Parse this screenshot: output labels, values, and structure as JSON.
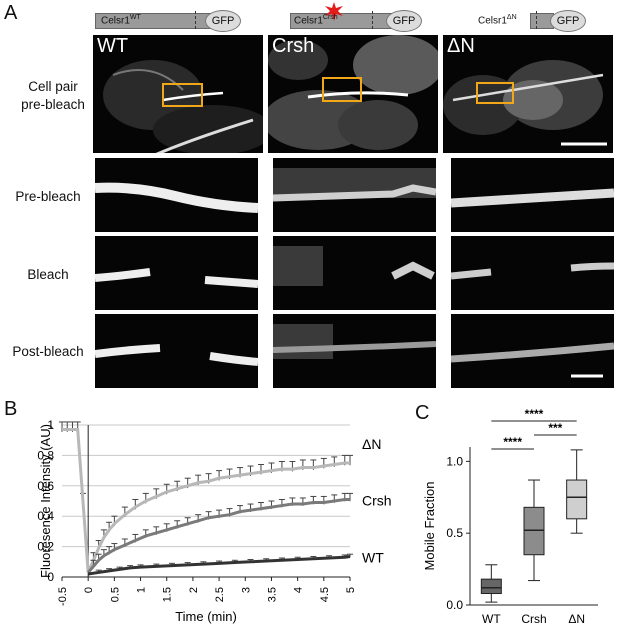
{
  "panel_labels": {
    "a": "A",
    "b": "B",
    "c": "C"
  },
  "constructs": [
    {
      "base": "Celsr1",
      "sup": "WT",
      "gfp": "GFP"
    },
    {
      "base": "Celsr1",
      "sup": "Crsh",
      "gfp": "GFP"
    },
    {
      "base": "Celsr1",
      "sup": "ΔN",
      "gfp": "GFP"
    }
  ],
  "columns": [
    "WT",
    "Crsh",
    "ΔN"
  ],
  "row_labels": {
    "cell_pair_1": "Cell pair",
    "cell_pair_2": "pre-bleach",
    "pre": "Pre-bleach",
    "bleach": "Bleach",
    "post": "Post-bleach"
  },
  "chart_data": [
    {
      "type": "line",
      "ylabel": "Fluoresence Intensity (AU)",
      "xlabel": "Time (min)",
      "xlim": [
        -0.5,
        5
      ],
      "ylim": [
        0,
        1
      ],
      "x_ticks": [
        "-0.5",
        "0",
        "0.5",
        "1",
        "1.5",
        "2",
        "2.5",
        "3",
        "3.5",
        "4",
        "4.5",
        "5"
      ],
      "y_ticks": [
        "0",
        "0.2",
        "0.4",
        "0.6",
        "0.8",
        "1"
      ],
      "grid": true,
      "series": [
        {
          "name": "ΔN",
          "color": "#b8b8b8",
          "x": [
            -0.5,
            -0.4,
            -0.3,
            -0.2,
            -0.1,
            0,
            0.1,
            0.2,
            0.3,
            0.4,
            0.5,
            0.7,
            0.9,
            1.1,
            1.3,
            1.5,
            1.7,
            1.9,
            2.1,
            2.3,
            2.5,
            2.7,
            2.9,
            3.1,
            3.3,
            3.5,
            3.7,
            3.9,
            4.1,
            4.3,
            4.5,
            4.7,
            4.9,
            5
          ],
          "y": [
            0.97,
            0.97,
            0.97,
            0.97,
            0.5,
            0.03,
            0.11,
            0.19,
            0.26,
            0.31,
            0.35,
            0.41,
            0.46,
            0.5,
            0.53,
            0.56,
            0.58,
            0.6,
            0.62,
            0.63,
            0.65,
            0.66,
            0.67,
            0.68,
            0.69,
            0.7,
            0.71,
            0.71,
            0.72,
            0.72,
            0.73,
            0.74,
            0.75,
            0.75
          ],
          "err": 0.05
        },
        {
          "name": "Crsh",
          "color": "#7a7a7a",
          "x": [
            0,
            0.1,
            0.2,
            0.3,
            0.4,
            0.5,
            0.7,
            0.9,
            1.1,
            1.3,
            1.5,
            1.7,
            1.9,
            2.1,
            2.3,
            2.5,
            2.7,
            2.9,
            3.1,
            3.3,
            3.5,
            3.7,
            3.9,
            4.1,
            4.3,
            4.5,
            4.7,
            4.9,
            5
          ],
          "y": [
            0.03,
            0.07,
            0.11,
            0.14,
            0.16,
            0.18,
            0.21,
            0.24,
            0.27,
            0.29,
            0.31,
            0.33,
            0.35,
            0.37,
            0.39,
            0.4,
            0.41,
            0.43,
            0.44,
            0.45,
            0.46,
            0.47,
            0.48,
            0.48,
            0.49,
            0.49,
            0.5,
            0.51,
            0.51
          ],
          "err": 0.04
        },
        {
          "name": "WT",
          "color": "#333333",
          "x": [
            0,
            0.2,
            0.4,
            0.6,
            0.8,
            1,
            1.3,
            1.6,
            1.9,
            2.2,
            2.5,
            2.8,
            3.1,
            3.4,
            3.7,
            4,
            4.3,
            4.6,
            4.9,
            5
          ],
          "y": [
            0.02,
            0.03,
            0.04,
            0.05,
            0.06,
            0.065,
            0.07,
            0.075,
            0.08,
            0.085,
            0.09,
            0.095,
            0.1,
            0.105,
            0.11,
            0.115,
            0.12,
            0.125,
            0.13,
            0.135
          ],
          "err": 0.015
        }
      ]
    },
    {
      "type": "box",
      "ylabel": "Mobile Fraction",
      "categories": [
        "WT",
        "Crsh",
        "ΔN"
      ],
      "ylim": [
        0,
        1.1
      ],
      "y_ticks": [
        "0.0",
        "0.5",
        "1.0"
      ],
      "boxes": [
        {
          "min": 0.02,
          "q1": 0.08,
          "median": 0.12,
          "q3": 0.18,
          "max": 0.28,
          "color": "#666666"
        },
        {
          "min": 0.17,
          "q1": 0.35,
          "median": 0.52,
          "q3": 0.68,
          "max": 0.87,
          "color": "#8c8c8c"
        },
        {
          "min": 0.5,
          "q1": 0.6,
          "median": 0.75,
          "q3": 0.87,
          "max": 1.08,
          "color": "#cfcfcf"
        }
      ],
      "significance": [
        "****",
        "****",
        "***"
      ]
    }
  ]
}
